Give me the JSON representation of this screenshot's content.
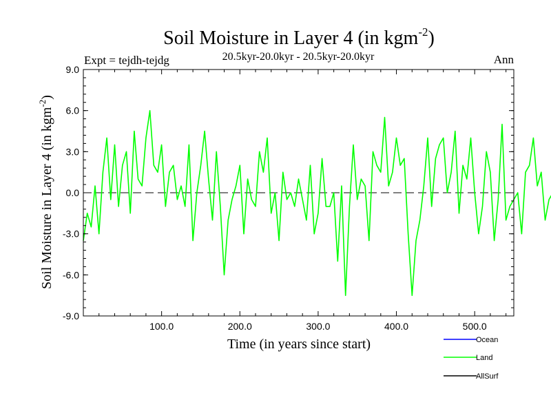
{
  "chart_data": {
    "type": "line",
    "title": "Soil Moisture in Layer 4 (in kgm",
    "title_sup": "-2",
    "title_close": ")",
    "subtitle": "20.5kyr-20.0kyr - 20.5kyr-20.0kyr",
    "expt_label": "Expt = tejdh-tejdg",
    "season_label": "Ann",
    "xlabel": "Time (in years since start)",
    "ylabel": "Soil Moisture in Layer 4 (in kgm",
    "ylabel_sup": "-2",
    "ylabel_close": ")",
    "xlim": [
      0,
      550
    ],
    "ylim": [
      -9,
      9
    ],
    "xticks": [
      100,
      200,
      300,
      400,
      500
    ],
    "xtick_labels": [
      "100.0",
      "200.0",
      "300.0",
      "400.0",
      "500.0"
    ],
    "yticks": [
      9,
      6,
      3,
      0,
      -3,
      -6,
      -9
    ],
    "ytick_labels": [
      "9.0",
      "6.0",
      "3.0",
      "0.0",
      "-3.0",
      "-6.0",
      "-9.0"
    ],
    "zero_line": 0,
    "legend": [
      {
        "name": "Ocean",
        "color": "#0000ff"
      },
      {
        "name": "Land",
        "color": "#00ff00"
      },
      {
        "name": "AllSurf",
        "color": "#000000"
      }
    ],
    "series": [
      {
        "name": "Land",
        "color": "#00ff00",
        "x_start": 0,
        "x_step": 5,
        "values": [
          -3.5,
          -1.5,
          -2.5,
          0.5,
          -3.0,
          1.5,
          4.0,
          -0.5,
          3.5,
          -1.0,
          2.0,
          3.0,
          -1.5,
          4.5,
          1.0,
          0.5,
          4.0,
          6.0,
          2.0,
          1.5,
          3.5,
          -1.0,
          1.5,
          2.0,
          -0.5,
          0.5,
          -1.0,
          3.5,
          -3.5,
          0.0,
          2.0,
          4.5,
          1.0,
          -2.0,
          3.0,
          -1.0,
          -6.0,
          -2.0,
          -0.5,
          0.5,
          2.0,
          -3.0,
          1.0,
          -0.5,
          -1.0,
          3.0,
          1.5,
          4.0,
          -1.5,
          0.0,
          -3.5,
          1.5,
          -0.5,
          0.0,
          -1.0,
          1.0,
          -0.5,
          -2.0,
          2.0,
          -3.0,
          -1.5,
          2.5,
          -1.0,
          -1.0,
          0.0,
          -5.0,
          0.5,
          -7.5,
          -1.0,
          3.5,
          -0.5,
          1.0,
          0.5,
          -3.5,
          3.0,
          2.0,
          1.5,
          5.5,
          0.5,
          1.5,
          4.0,
          2.0,
          2.5,
          -3.0,
          -7.5,
          -3.5,
          -2.0,
          0.5,
          4.0,
          -1.0,
          2.5,
          3.5,
          4.0,
          0.0,
          1.5,
          4.5,
          -1.5,
          2.0,
          1.0,
          4.0,
          0.0,
          -3.0,
          -1.0,
          3.0,
          1.5,
          -3.5,
          -0.5,
          5.0,
          -2.0,
          -1.0,
          -0.5,
          0.0,
          -3.0,
          1.5,
          2.0,
          4.0,
          0.5,
          1.5,
          -2.0,
          -0.5,
          0.0,
          1.0,
          3.5,
          0.5,
          -3.0,
          -2.5,
          -0.5,
          1.5,
          3.5,
          0.5,
          2.0,
          4.0,
          1.5,
          -0.5,
          -3.0,
          -0.5,
          0.0,
          -1.0,
          -0.5,
          2.0,
          2.5,
          6.5,
          0.5,
          1.5,
          3.0,
          3.5,
          0.5,
          -1.0,
          -2.5,
          -1.0,
          1.5,
          -1.0,
          0.0,
          -0.5,
          -2.0,
          -1.0,
          0.5,
          0.5,
          -0.5,
          2.5,
          -1.5,
          4.0,
          0.5,
          3.5,
          0.5,
          2.0,
          1.5,
          -3.0,
          2.5,
          -2.5,
          -2.0,
          2.0,
          0.5,
          0.0,
          -1.0,
          -1.5,
          -0.5,
          0.5,
          -1.0,
          0.5,
          -2.0,
          -4.0,
          -4.5,
          -5.0,
          -8.5,
          -1.0,
          -6.0,
          -2.0
        ]
      }
    ]
  }
}
